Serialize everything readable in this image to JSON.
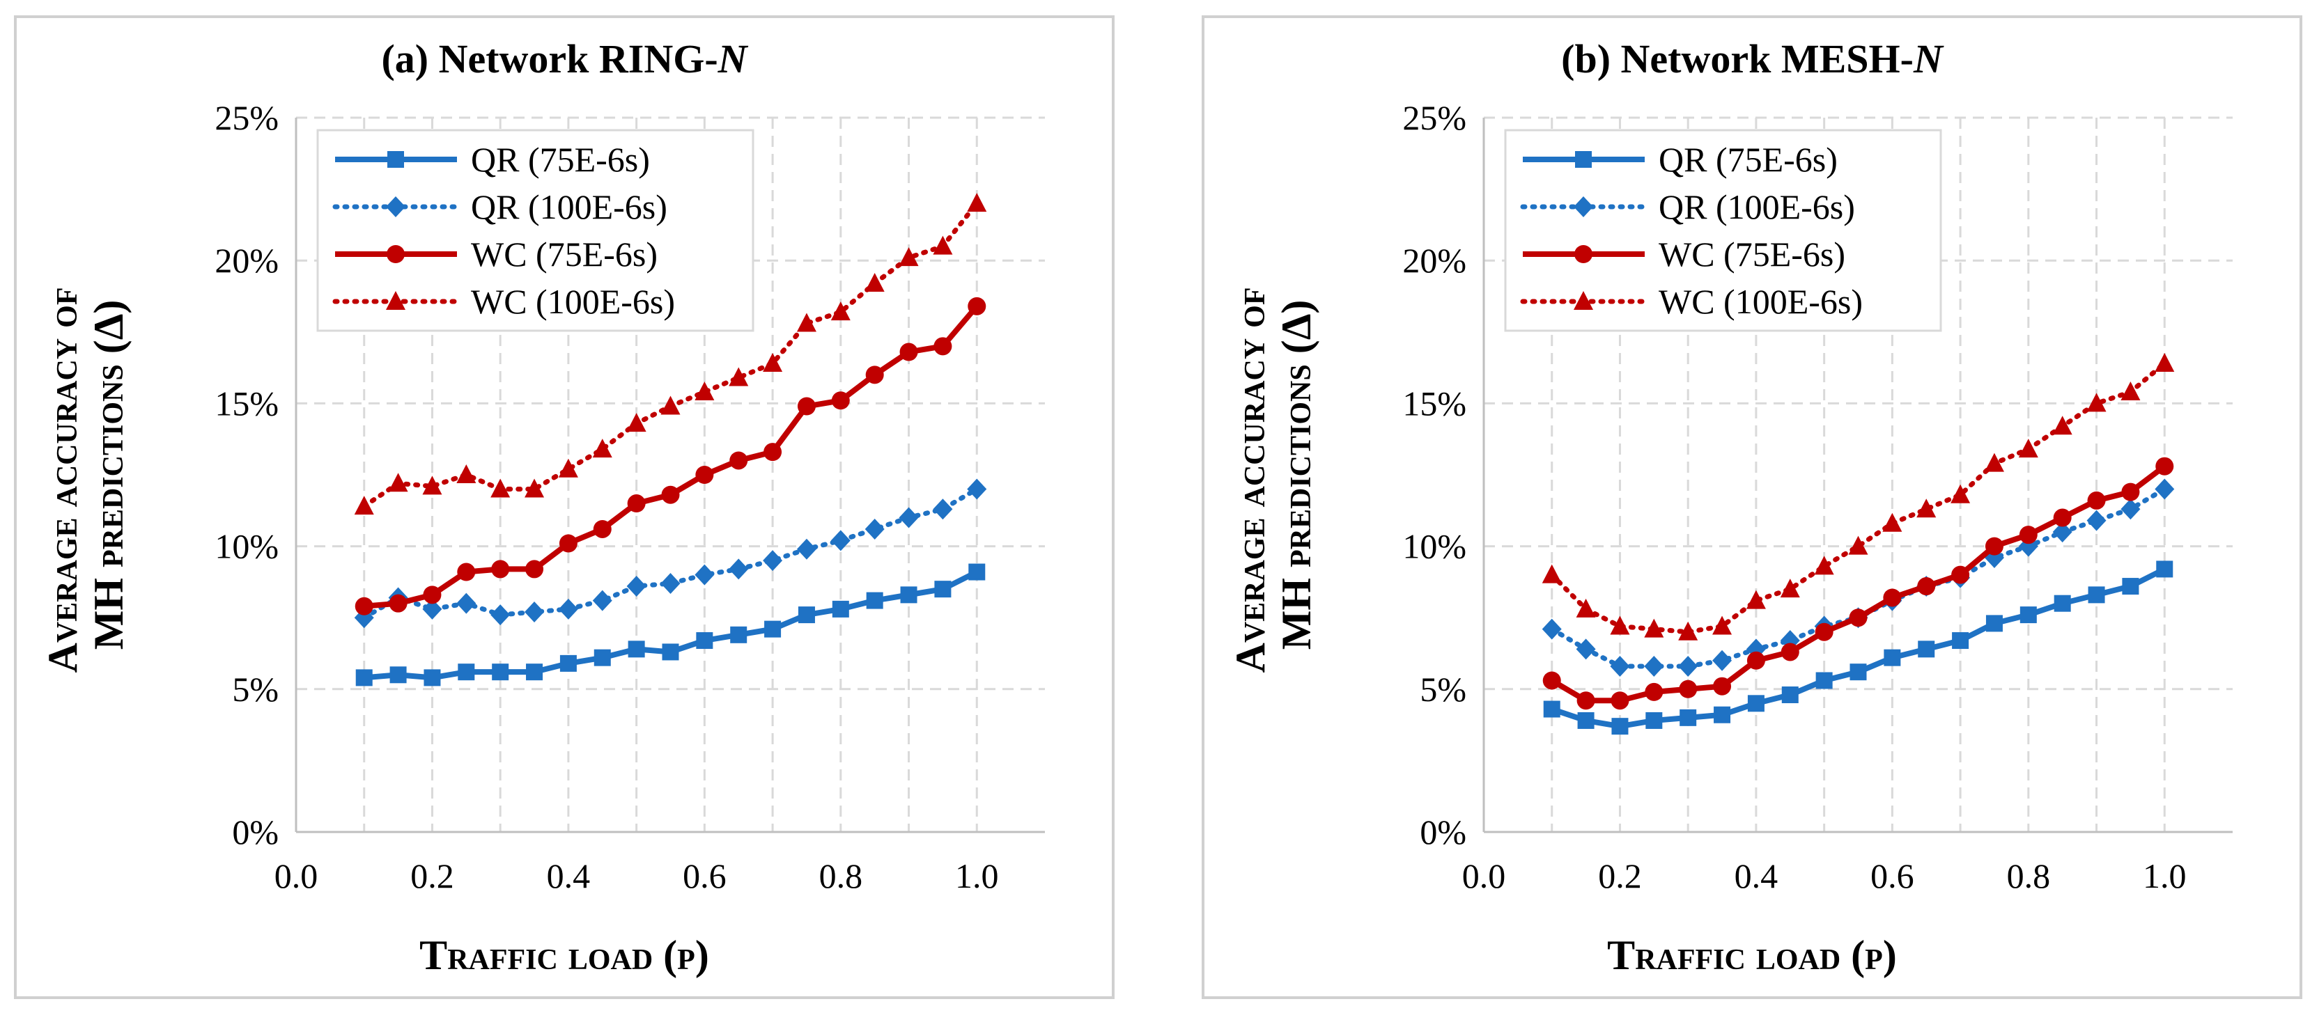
{
  "chart_data": [
    {
      "type": "line",
      "title_prefix": "(a) Network RING-",
      "title_italic": "N",
      "xlabel": "Traffic load (ρ)",
      "ylabel_line1": "Average accuracy of",
      "ylabel_line2": "MH predictions (Δ)",
      "xlim": [
        0.0,
        1.1
      ],
      "ylim": [
        0,
        25
      ],
      "x_ticks": [
        "0.0",
        "0.2",
        "0.4",
        "0.6",
        "0.8",
        "1.0"
      ],
      "x_tick_values": [
        0.0,
        0.2,
        0.4,
        0.6,
        0.8,
        1.0
      ],
      "y_ticks": [
        "0%",
        "5%",
        "10%",
        "15%",
        "20%",
        "25%"
      ],
      "y_tick_values": [
        0,
        5,
        10,
        15,
        20,
        25
      ],
      "grid": true,
      "legend_position": "top-left",
      "x": [
        0.1,
        0.15,
        0.2,
        0.25,
        0.3,
        0.35,
        0.4,
        0.45,
        0.5,
        0.55,
        0.6,
        0.65,
        0.7,
        0.75,
        0.8,
        0.85,
        0.9,
        0.95,
        1.0
      ],
      "series": [
        {
          "name": "QR (75E-6s)",
          "color": "#1f72c4",
          "style": "solid",
          "marker": "square",
          "values": [
            5.4,
            5.5,
            5.4,
            5.6,
            5.6,
            5.6,
            5.9,
            6.1,
            6.4,
            6.3,
            6.7,
            6.9,
            7.1,
            7.6,
            7.8,
            8.1,
            8.3,
            8.5,
            9.1
          ]
        },
        {
          "name": "QR (100E-6s)",
          "color": "#1f72c4",
          "style": "dotted",
          "marker": "diamond",
          "values": [
            7.5,
            8.2,
            7.8,
            8.0,
            7.6,
            7.7,
            7.8,
            8.1,
            8.6,
            8.7,
            9.0,
            9.2,
            9.5,
            9.9,
            10.2,
            10.6,
            11.0,
            11.3,
            12.0
          ]
        },
        {
          "name": "WC (75E-6s)",
          "color": "#c00000",
          "style": "solid",
          "marker": "circle",
          "values": [
            7.9,
            8.0,
            8.3,
            9.1,
            9.2,
            9.2,
            10.1,
            10.6,
            11.5,
            11.8,
            12.5,
            13.0,
            13.3,
            14.9,
            15.1,
            16.0,
            16.8,
            17.0,
            18.4
          ]
        },
        {
          "name": "WC (100E-6s)",
          "color": "#c00000",
          "style": "dotted",
          "marker": "triangle",
          "values": [
            11.4,
            12.2,
            12.1,
            12.5,
            12.0,
            12.0,
            12.7,
            13.4,
            14.3,
            14.9,
            15.4,
            15.9,
            16.4,
            17.8,
            18.2,
            19.2,
            20.1,
            20.5,
            22.0
          ]
        }
      ]
    },
    {
      "type": "line",
      "title_prefix": "(b) Network MESH-",
      "title_italic": "N",
      "xlabel": "Traffic load (ρ)",
      "ylabel_line1": "Average accuracy of",
      "ylabel_line2": "MH predictions (Δ)",
      "xlim": [
        0.0,
        1.1
      ],
      "ylim": [
        0,
        25
      ],
      "x_ticks": [
        "0.0",
        "0.2",
        "0.4",
        "0.6",
        "0.8",
        "1.0"
      ],
      "x_tick_values": [
        0.0,
        0.2,
        0.4,
        0.6,
        0.8,
        1.0
      ],
      "y_ticks": [
        "0%",
        "5%",
        "10%",
        "15%",
        "20%",
        "25%"
      ],
      "y_tick_values": [
        0,
        5,
        10,
        15,
        20,
        25
      ],
      "grid": true,
      "legend_position": "top-left",
      "x": [
        0.1,
        0.15,
        0.2,
        0.25,
        0.3,
        0.35,
        0.4,
        0.45,
        0.5,
        0.55,
        0.6,
        0.65,
        0.7,
        0.75,
        0.8,
        0.85,
        0.9,
        0.95,
        1.0
      ],
      "series": [
        {
          "name": "QR (75E-6s)",
          "color": "#1f72c4",
          "style": "solid",
          "marker": "square",
          "values": [
            4.3,
            3.9,
            3.7,
            3.9,
            4.0,
            4.1,
            4.5,
            4.8,
            5.3,
            5.6,
            6.1,
            6.4,
            6.7,
            7.3,
            7.6,
            8.0,
            8.3,
            8.6,
            9.2
          ]
        },
        {
          "name": "QR (100E-6s)",
          "color": "#1f72c4",
          "style": "dotted",
          "marker": "diamond",
          "values": [
            7.1,
            6.4,
            5.8,
            5.8,
            5.8,
            6.0,
            6.4,
            6.7,
            7.2,
            7.5,
            8.1,
            8.6,
            8.9,
            9.6,
            10.0,
            10.5,
            10.9,
            11.3,
            12.0
          ]
        },
        {
          "name": "WC (75E-6s)",
          "color": "#c00000",
          "style": "solid",
          "marker": "circle",
          "values": [
            5.3,
            4.6,
            4.6,
            4.9,
            5.0,
            5.1,
            6.0,
            6.3,
            7.0,
            7.5,
            8.2,
            8.6,
            9.0,
            10.0,
            10.4,
            11.0,
            11.6,
            11.9,
            12.8
          ]
        },
        {
          "name": "WC (100E-6s)",
          "color": "#c00000",
          "style": "dotted",
          "marker": "triangle",
          "values": [
            9.0,
            7.8,
            7.2,
            7.1,
            7.0,
            7.2,
            8.1,
            8.5,
            9.3,
            10.0,
            10.8,
            11.3,
            11.8,
            12.9,
            13.4,
            14.2,
            15.0,
            15.4,
            16.4
          ]
        }
      ]
    }
  ]
}
